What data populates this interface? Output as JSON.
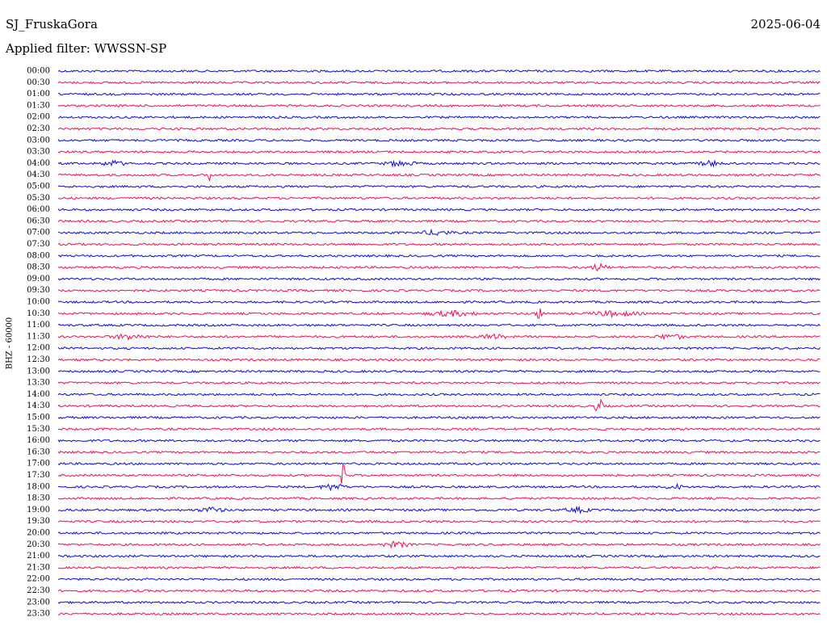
{
  "header": {
    "station": "SJ_FruskaGora",
    "date": "2025-06-04",
    "filter": "Applied filter: WWSSN-SP"
  },
  "axis_label": "BHZ - 60000",
  "trace_colors": [
    "#0a0ad8",
    "#f0104c"
  ],
  "times": [
    "00:00",
    "00:30",
    "01:00",
    "01:30",
    "02:00",
    "02:30",
    "03:00",
    "03:30",
    "04:00",
    "04:30",
    "05:00",
    "05:30",
    "06:00",
    "06:30",
    "07:00",
    "07:30",
    "08:00",
    "08:30",
    "09:00",
    "09:30",
    "10:00",
    "10:30",
    "11:00",
    "11:30",
    "12:00",
    "12:30",
    "13:00",
    "13:30",
    "14:00",
    "14:30",
    "15:00",
    "15:30",
    "16:00",
    "16:30",
    "17:00",
    "17:30",
    "18:00",
    "18:30",
    "19:00",
    "19:30",
    "20:00",
    "20:30",
    "21:00",
    "21:30",
    "22:00",
    "22:30",
    "23:00",
    "23:30"
  ]
}
